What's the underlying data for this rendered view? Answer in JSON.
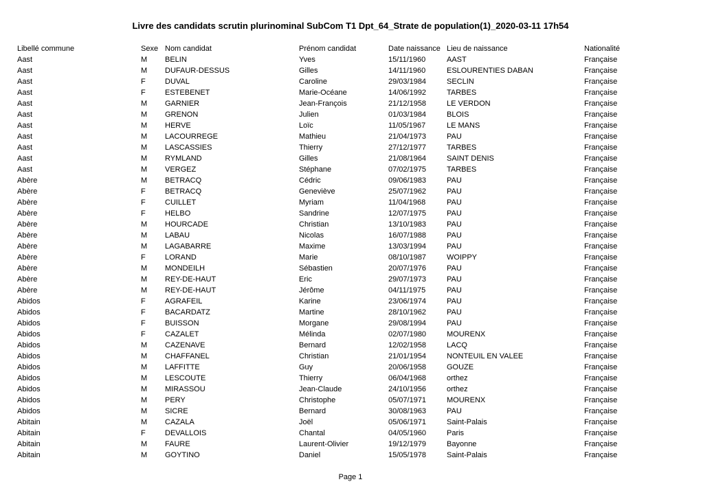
{
  "title": "Livre des candidats scrutin plurinominal SubCom T1 Dpt_64_Strate de population(1)_2020-03-11 17h54",
  "footer": "Page 1",
  "columns": [
    "Libellé commune",
    "Sexe",
    "Nom candidat",
    "Prénom candidat",
    "Date naissance",
    "Lieu de naissance",
    "Nationalité"
  ],
  "rows": [
    [
      "Aast",
      "M",
      "BELIN",
      "Yves",
      "15/11/1960",
      "AAST",
      "Française"
    ],
    [
      "Aast",
      "M",
      "DUFAUR-DESSUS",
      "Gilles",
      "14/11/1960",
      "ESLOURENTIES DABAN",
      "Française"
    ],
    [
      "Aast",
      "F",
      "DUVAL",
      "Caroline",
      "29/03/1984",
      "SECLIN",
      "Française"
    ],
    [
      "Aast",
      "F",
      "ESTEBENET",
      "Marie-Océane",
      "14/06/1992",
      "TARBES",
      "Française"
    ],
    [
      "Aast",
      "M",
      "GARNIER",
      "Jean-François",
      "21/12/1958",
      "LE VERDON",
      "Française"
    ],
    [
      "Aast",
      "M",
      "GRENON",
      "Julien",
      "01/03/1984",
      "BLOIS",
      "Française"
    ],
    [
      "Aast",
      "M",
      "HERVE",
      "Loïc",
      "11/05/1967",
      "LE MANS",
      "Française"
    ],
    [
      "Aast",
      "M",
      "LACOURREGE",
      "Mathieu",
      "21/04/1973",
      "PAU",
      "Française"
    ],
    [
      "Aast",
      "M",
      "LASCASSIES",
      "Thierry",
      "27/12/1977",
      "TARBES",
      "Française"
    ],
    [
      "Aast",
      "M",
      "RYMLAND",
      "Gilles",
      "21/08/1964",
      "SAINT DENIS",
      "Française"
    ],
    [
      "Aast",
      "M",
      "VERGEZ",
      "Stéphane",
      "07/02/1975",
      "TARBES",
      "Française"
    ],
    [
      "Abère",
      "M",
      "BETRACQ",
      "Cédric",
      "09/06/1983",
      "PAU",
      "Française"
    ],
    [
      "Abère",
      "F",
      "BETRACQ",
      "Geneviève",
      "25/07/1962",
      "PAU",
      "Française"
    ],
    [
      "Abère",
      "F",
      "CUILLET",
      "Myriam",
      "11/04/1968",
      "PAU",
      "Française"
    ],
    [
      "Abère",
      "F",
      "HELBO",
      "Sandrine",
      "12/07/1975",
      "PAU",
      "Française"
    ],
    [
      "Abère",
      "M",
      "HOURCADE",
      "Christian",
      "13/10/1983",
      "PAU",
      "Française"
    ],
    [
      "Abère",
      "M",
      "LABAU",
      "Nicolas",
      "16/07/1988",
      "PAU",
      "Française"
    ],
    [
      "Abère",
      "M",
      "LAGABARRE",
      "Maxime",
      "13/03/1994",
      "PAU",
      "Française"
    ],
    [
      "Abère",
      "F",
      "LORAND",
      "Marie",
      "08/10/1987",
      "WOIPPY",
      "Française"
    ],
    [
      "Abère",
      "M",
      "MONDEILH",
      "Sébastien",
      "20/07/1976",
      "PAU",
      "Française"
    ],
    [
      "Abère",
      "M",
      "REY-DE-HAUT",
      "Eric",
      "29/07/1973",
      "PAU",
      "Française"
    ],
    [
      "Abère",
      "M",
      "REY-DE-HAUT",
      "Jérôme",
      "04/11/1975",
      "PAU",
      "Française"
    ],
    [
      "Abidos",
      "F",
      "AGRAFEIL",
      "Karine",
      "23/06/1974",
      "PAU",
      "Française"
    ],
    [
      "Abidos",
      "F",
      "BACARDATZ",
      "Martine",
      "28/10/1962",
      "PAU",
      "Française"
    ],
    [
      "Abidos",
      "F",
      "BUISSON",
      "Morgane",
      "29/08/1994",
      "PAU",
      "Française"
    ],
    [
      "Abidos",
      "F",
      "CAZALET",
      "Mélinda",
      "02/07/1980",
      "MOURENX",
      "Française"
    ],
    [
      "Abidos",
      "M",
      "CAZENAVE",
      "Bernard",
      "12/02/1958",
      "LACQ",
      "Française"
    ],
    [
      "Abidos",
      "M",
      "CHAFFANEL",
      "Christian",
      "21/01/1954",
      "NONTEUIL EN VALEE",
      "Française"
    ],
    [
      "Abidos",
      "M",
      "LAFFITTE",
      "Guy",
      "20/06/1958",
      "GOUZE",
      "Française"
    ],
    [
      "Abidos",
      "M",
      "LESCOUTE",
      "Thierry",
      "06/04/1968",
      "orthez",
      "Française"
    ],
    [
      "Abidos",
      "M",
      "MIRASSOU",
      "Jean-Claude",
      "24/10/1956",
      "orthez",
      "Française"
    ],
    [
      "Abidos",
      "M",
      "PERY",
      "Christophe",
      "05/07/1971",
      "MOURENX",
      "Française"
    ],
    [
      "Abidos",
      "M",
      "SICRE",
      "Bernard",
      "30/08/1963",
      "PAU",
      "Française"
    ],
    [
      "Abitain",
      "M",
      "CAZALA",
      "Joël",
      "05/06/1971",
      "Saint-Palais",
      "Française"
    ],
    [
      "Abitain",
      "F",
      "DEVALLOIS",
      "Chantal",
      "04/05/1960",
      "Paris",
      "Française"
    ],
    [
      "Abitain",
      "M",
      "FAURE",
      "Laurent-Olivier",
      "19/12/1979",
      "Bayonne",
      "Française"
    ],
    [
      "Abitain",
      "M",
      "GOYTINO",
      "Daniel",
      "15/05/1978",
      "Saint-Palais",
      "Française"
    ]
  ]
}
